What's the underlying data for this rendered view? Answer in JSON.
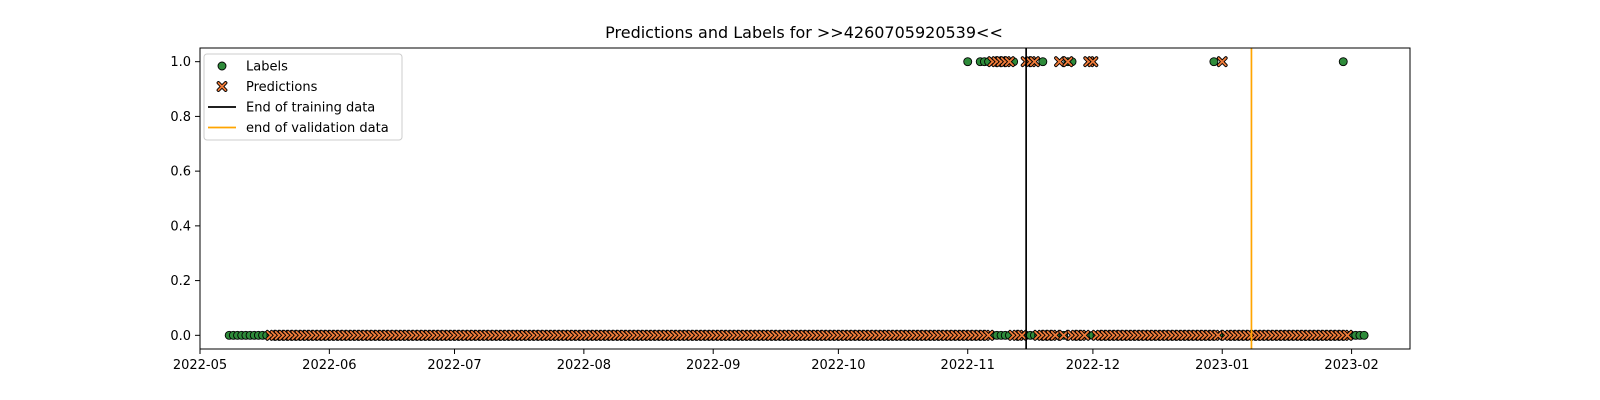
{
  "chart_data": {
    "type": "scatter",
    "title": "Predictions and Labels for >>4260705920539<<",
    "xlabel": "",
    "ylabel": "",
    "xlim": [
      "2022-05-01",
      "2023-02-15"
    ],
    "ylim": [
      -0.05,
      1.05
    ],
    "x_ticks": [
      "2022-05",
      "2022-06",
      "2022-07",
      "2022-08",
      "2022-09",
      "2022-10",
      "2022-11",
      "2022-12",
      "2023-01",
      "2023-02"
    ],
    "y_ticks": [
      "0.0",
      "0.2",
      "0.4",
      "0.6",
      "0.8",
      "1.0"
    ],
    "grid": false,
    "legend": {
      "placement": "upper-left",
      "entries": [
        {
          "label": "Labels",
          "kind": "marker",
          "marker": "circle",
          "color": "#2e8b3a"
        },
        {
          "label": "Predictions",
          "kind": "marker",
          "marker": "x",
          "color": "#f07c3a"
        },
        {
          "label": "End of training data",
          "kind": "line",
          "color": "#000000"
        },
        {
          "label": "end of validation data",
          "kind": "line",
          "color": "#ffa500"
        }
      ]
    },
    "vlines": [
      {
        "name": "End of training data",
        "x": "2022-11-15",
        "color": "#000000"
      },
      {
        "name": "end of validation data",
        "x": "2023-01-08",
        "color": "#ffa500"
      }
    ],
    "series": [
      {
        "name": "Labels",
        "marker": "circle",
        "color": "#2e8b3a",
        "date_range": [
          "2022-05-08",
          "2023-02-04"
        ],
        "default_value": 0,
        "positive_dates": [
          "2022-11-01",
          "2022-11-04",
          "2022-11-05",
          "2022-11-06",
          "2022-11-12",
          "2022-11-19",
          "2022-11-25",
          "2022-11-26",
          "2022-12-30",
          "2023-01-30"
        ]
      },
      {
        "name": "Predictions",
        "marker": "x",
        "color": "#f07c3a",
        "date_range": [
          "2022-05-18",
          "2023-01-31"
        ],
        "default_value": 0,
        "positive_dates": [
          "2022-11-07",
          "2022-11-08",
          "2022-11-09",
          "2022-11-10",
          "2022-11-11",
          "2022-11-15",
          "2022-11-16",
          "2022-11-17",
          "2022-11-23",
          "2022-11-25",
          "2022-11-30",
          "2022-12-01",
          "2023-01-01"
        ]
      }
    ]
  }
}
